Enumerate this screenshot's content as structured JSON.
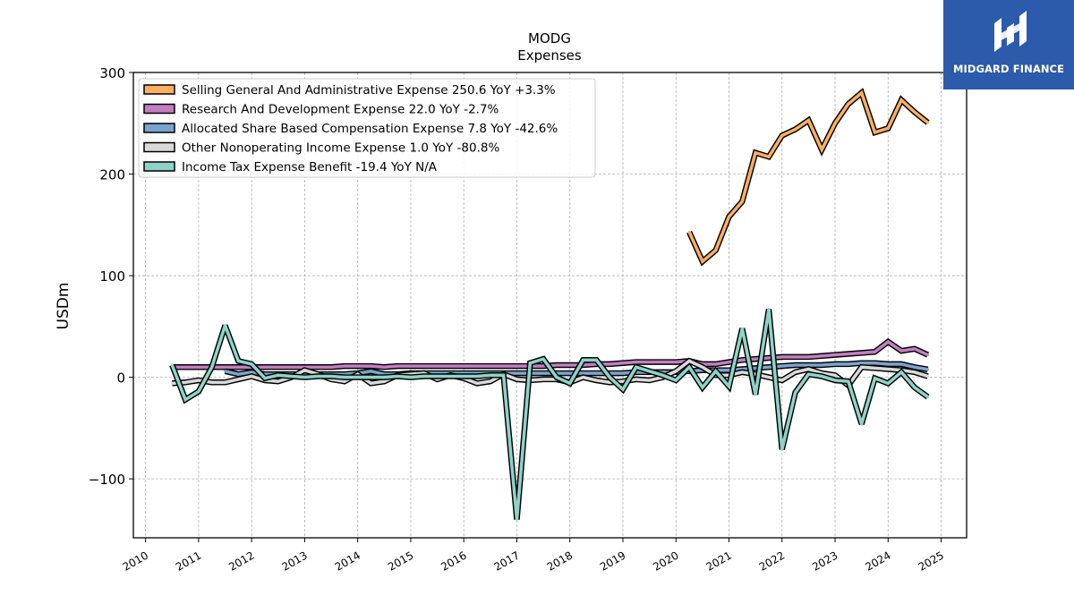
{
  "brand": {
    "name": "MIDGARD FINANCE",
    "bg": "#2d5bab"
  },
  "chart_data": {
    "type": "line",
    "title": "MODG",
    "subtitle": "Expenses",
    "ylabel": "USDm",
    "xlabel": "",
    "ylim": [
      -158,
      300
    ],
    "xlim": [
      2009.77,
      2025.48
    ],
    "yticks": [
      -100,
      0,
      100,
      200,
      300
    ],
    "ytick_labels": [
      "−100",
      "0",
      "100",
      "200",
      "300"
    ],
    "xticks": [
      2010,
      2011,
      2012,
      2013,
      2014,
      2015,
      2016,
      2017,
      2018,
      2019,
      2020,
      2021,
      2022,
      2023,
      2024,
      2025
    ],
    "xtick_labels": [
      "2010",
      "2011",
      "2012",
      "2013",
      "2014",
      "2015",
      "2016",
      "2017",
      "2018",
      "2019",
      "2020",
      "2021",
      "2022",
      "2023",
      "2024",
      "2025"
    ],
    "grid": true,
    "legend_position": "top-left",
    "series": [
      {
        "name": "Selling General And Administrative Expense  250.6 YoY +3.3%",
        "color": "#fdae61",
        "x": [
          2020.25,
          2020.5,
          2020.75,
          2021.0,
          2021.25,
          2021.5,
          2021.75,
          2022.0,
          2022.25,
          2022.5,
          2022.75,
          2023.0,
          2023.25,
          2023.5,
          2023.75,
          2024.0,
          2024.25,
          2024.5,
          2024.75
        ],
        "values": [
          143,
          114,
          125,
          158,
          173,
          221,
          217,
          238,
          244,
          253,
          224,
          250,
          269,
          280,
          241,
          245,
          273,
          261,
          250.6
        ]
      },
      {
        "name": "Research And Development Expense  22.0 YoY -2.7%",
        "color": "#c27ec0",
        "x": [
          2010.5,
          2010.75,
          2011.0,
          2011.25,
          2011.5,
          2011.75,
          2012.0,
          2012.25,
          2012.5,
          2012.75,
          2013.0,
          2013.25,
          2013.5,
          2013.75,
          2014.0,
          2014.25,
          2014.5,
          2014.75,
          2015.0,
          2015.25,
          2015.5,
          2015.75,
          2016.0,
          2016.25,
          2016.5,
          2016.75,
          2017.0,
          2017.25,
          2017.5,
          2017.75,
          2018.0,
          2018.25,
          2018.5,
          2018.75,
          2019.0,
          2019.25,
          2019.5,
          2019.75,
          2020.0,
          2020.25,
          2020.5,
          2020.75,
          2021.0,
          2021.25,
          2021.5,
          2021.75,
          2022.0,
          2022.25,
          2022.5,
          2022.75,
          2023.0,
          2023.25,
          2023.5,
          2023.75,
          2024.0,
          2024.25,
          2024.5,
          2024.75
        ],
        "values": [
          10,
          10,
          10,
          10,
          10,
          10,
          10,
          10,
          10,
          10,
          10,
          10,
          10,
          11,
          11,
          11,
          10,
          11,
          11,
          11,
          11,
          11,
          11,
          11,
          11,
          11,
          11,
          11,
          11,
          12,
          12,
          12,
          13,
          13,
          14,
          15,
          15,
          15,
          15,
          16,
          13,
          13,
          15,
          17,
          18,
          19,
          20,
          20,
          20,
          21,
          22,
          23,
          24,
          25,
          35,
          26,
          28,
          22.0
        ]
      },
      {
        "name": "Allocated Share Based Compensation Expense  7.8 YoY -42.6%",
        "color": "#7aa4cf",
        "x": [
          2011.5,
          2011.75,
          2012.0,
          2012.25,
          2012.5,
          2012.75,
          2013.0,
          2013.25,
          2013.5,
          2013.75,
          2014.0,
          2014.25,
          2014.5,
          2014.75,
          2015.0,
          2015.25,
          2015.5,
          2015.75,
          2016.0,
          2016.25,
          2016.5,
          2016.75,
          2017.0,
          2017.25,
          2017.5,
          2017.75,
          2018.0,
          2018.25,
          2018.5,
          2018.75,
          2019.0,
          2019.25,
          2019.5,
          2019.75,
          2020.0,
          2020.25,
          2020.5,
          2020.75,
          2021.0,
          2021.25,
          2021.5,
          2021.75,
          2022.0,
          2022.25,
          2022.5,
          2022.75,
          2023.0,
          2023.25,
          2023.5,
          2023.75,
          2024.0,
          2024.25,
          2024.5,
          2024.75
        ],
        "values": [
          6,
          3,
          5,
          3,
          3,
          3,
          3,
          3,
          3,
          3,
          4,
          6,
          3,
          3,
          4,
          4,
          4,
          4,
          4,
          4,
          4,
          4,
          4,
          4,
          4,
          4,
          4,
          4,
          4,
          4,
          4,
          5,
          5,
          5,
          5,
          6,
          7,
          7,
          7,
          8,
          9,
          10,
          11,
          12,
          12,
          12,
          13,
          13,
          14,
          14,
          13,
          13,
          10,
          7.8
        ]
      },
      {
        "name": "Other Nonoperating Income Expense  1.0 YoY -80.8%",
        "color": "#d9d9d9",
        "x": [
          2010.5,
          2010.75,
          2011.0,
          2011.25,
          2011.5,
          2011.75,
          2012.0,
          2012.25,
          2012.5,
          2012.75,
          2013.0,
          2013.25,
          2013.5,
          2013.75,
          2014.0,
          2014.25,
          2014.5,
          2014.75,
          2015.0,
          2015.25,
          2015.5,
          2015.75,
          2016.0,
          2016.25,
          2016.5,
          2016.75,
          2017.0,
          2017.25,
          2017.5,
          2017.75,
          2018.0,
          2018.25,
          2018.5,
          2018.75,
          2019.0,
          2019.25,
          2019.5,
          2019.75,
          2020.0,
          2020.25,
          2020.5,
          2020.75,
          2021.0,
          2021.25,
          2021.5,
          2021.75,
          2022.0,
          2022.25,
          2022.5,
          2022.75,
          2023.0,
          2023.25,
          2023.5,
          2023.75,
          2024.0,
          2024.25,
          2024.5,
          2024.75
        ],
        "values": [
          -6,
          -5,
          -3,
          -5,
          -5,
          -2,
          1,
          -3,
          -4,
          0,
          7,
          3,
          -2,
          -4,
          3,
          -6,
          -4,
          2,
          3,
          4,
          -2,
          2,
          -1,
          -6,
          -4,
          3,
          -2,
          -3,
          -2,
          -2,
          -5,
          0,
          -3,
          -5,
          -4,
          -2,
          -3,
          0,
          6,
          16,
          10,
          2,
          2,
          5,
          3,
          0,
          -3,
          5,
          8,
          4,
          2,
          -8,
          10,
          9,
          8,
          7,
          5,
          1.0
        ]
      },
      {
        "name": "Income Tax Expense Benefit  -19.4 YoY N/A",
        "color": "#8dd3c7",
        "x": [
          2010.5,
          2010.75,
          2011.0,
          2011.25,
          2011.5,
          2011.75,
          2012.0,
          2012.25,
          2012.5,
          2012.75,
          2013.0,
          2013.25,
          2013.5,
          2013.75,
          2014.0,
          2014.25,
          2014.5,
          2014.75,
          2015.0,
          2015.25,
          2015.5,
          2015.75,
          2016.0,
          2016.25,
          2016.5,
          2016.75,
          2017.0,
          2017.25,
          2017.5,
          2017.75,
          2018.0,
          2018.25,
          2018.5,
          2018.75,
          2019.0,
          2019.25,
          2019.5,
          2019.75,
          2020.0,
          2020.25,
          2020.5,
          2020.75,
          2021.0,
          2021.25,
          2021.5,
          2021.75,
          2022.0,
          2022.25,
          2022.5,
          2022.75,
          2023.0,
          2023.25,
          2023.5,
          2023.75,
          2024.0,
          2024.25,
          2024.5,
          2024.75
        ],
        "values": [
          12,
          -22,
          -14,
          10,
          51,
          16,
          13,
          -1,
          2,
          1,
          0,
          1,
          1,
          0,
          0,
          0,
          0,
          1,
          0,
          1,
          1,
          1,
          1,
          1,
          2,
          2,
          -140,
          14,
          18,
          0,
          -6,
          17,
          17,
          0,
          -12,
          10,
          6,
          2,
          -3,
          10,
          -10,
          6,
          -9,
          48,
          -17,
          67,
          -71,
          -15,
          3,
          1,
          -3,
          -4,
          -46,
          -1,
          -6,
          5,
          -10,
          -19.4
        ]
      }
    ]
  }
}
